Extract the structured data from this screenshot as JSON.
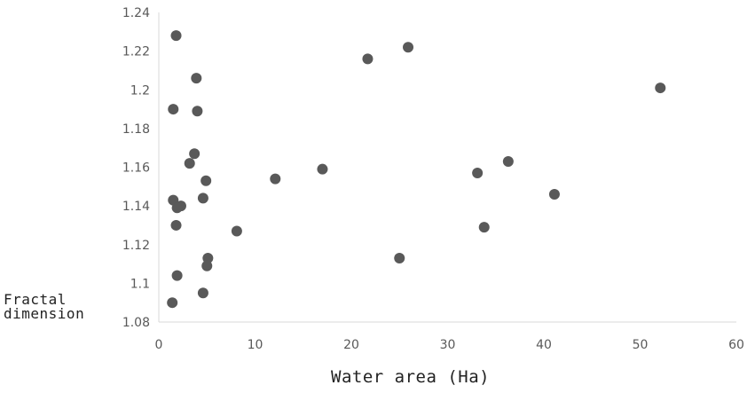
{
  "chart_data": {
    "type": "scatter",
    "title": "",
    "xlabel": "Water area (Ha)",
    "ylabel": "Fractal dimension",
    "ylabel_lines": [
      "Fractal",
      "dimension"
    ],
    "xlim": [
      0,
      60
    ],
    "ylim": [
      1.08,
      1.24
    ],
    "x_ticks": [
      "0",
      "10",
      "20",
      "30",
      "40",
      "50",
      "60"
    ],
    "y_ticks": [
      "1.08",
      "1.1",
      "1.12",
      "1.14",
      "1.16",
      "1.18",
      "1.2",
      "1.22",
      "1.24"
    ],
    "grid": false,
    "legend": "none",
    "marker_color": "#595959",
    "series": [
      {
        "points": [
          [
            1.8,
            1.228
          ],
          [
            3.9,
            1.206
          ],
          [
            1.5,
            1.19
          ],
          [
            4.0,
            1.189
          ],
          [
            3.7,
            1.167
          ],
          [
            3.2,
            1.162
          ],
          [
            4.9,
            1.153
          ],
          [
            1.5,
            1.143
          ],
          [
            2.3,
            1.14
          ],
          [
            1.9,
            1.139
          ],
          [
            4.6,
            1.144
          ],
          [
            1.8,
            1.13
          ],
          [
            8.1,
            1.127
          ],
          [
            5.1,
            1.113
          ],
          [
            5.0,
            1.109
          ],
          [
            1.9,
            1.104
          ],
          [
            4.6,
            1.095
          ],
          [
            1.4,
            1.09
          ],
          [
            12.1,
            1.154
          ],
          [
            17.0,
            1.159
          ],
          [
            21.7,
            1.216
          ],
          [
            25.9,
            1.222
          ],
          [
            25.0,
            1.113
          ],
          [
            33.1,
            1.157
          ],
          [
            33.8,
            1.129
          ],
          [
            36.3,
            1.163
          ],
          [
            41.1,
            1.146
          ],
          [
            52.1,
            1.201
          ]
        ]
      }
    ]
  }
}
